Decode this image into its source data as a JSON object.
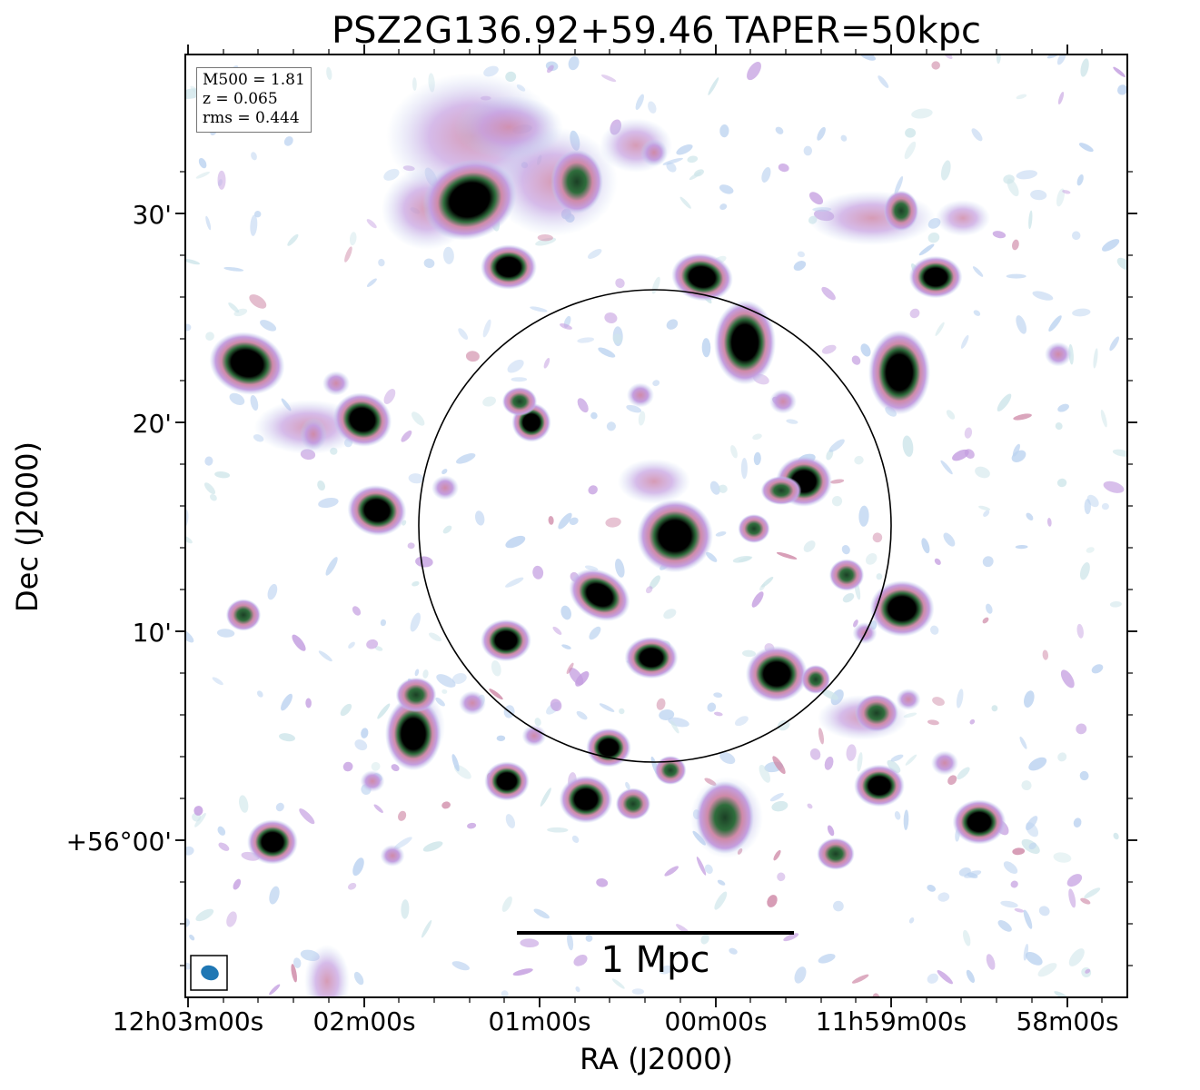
{
  "title": "PSZ2G136.92+59.46 TAPER=50kpc",
  "axes": {
    "xlabel": "RA (J2000)",
    "ylabel": "Dec (J2000)",
    "xticks": [
      "12h03m00s",
      "02m00s",
      "01m00s",
      "00m00s",
      "11h59m00s",
      "58m00s"
    ],
    "yticks": [
      "30'",
      "20'",
      "10'",
      "+56°00'"
    ]
  },
  "info": {
    "m500": "M500 = 1.81",
    "z": "z = 0.065",
    "rms": "rms = 0.444"
  },
  "scale_bar": {
    "label": "1 Mpc"
  },
  "colors": {
    "faint": "#bcd3f0",
    "mid": "#c49ee0",
    "pink": "#cf8aa8",
    "green": "#2f6d3c",
    "core": "#000000",
    "beam": "#1f77b4"
  }
}
